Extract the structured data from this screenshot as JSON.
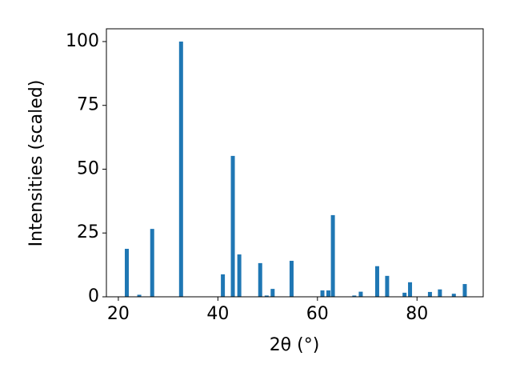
{
  "chart_data": {
    "type": "bar",
    "xlabel": "2θ (°)",
    "ylabel": "Intensities (scaled)",
    "x": [
      21.7,
      24.2,
      26.8,
      32.6,
      41.0,
      43.0,
      44.3,
      48.5,
      49.8,
      51.0,
      54.8,
      61.0,
      62.2,
      63.1,
      67.4,
      68.7,
      72.0,
      74.0,
      77.5,
      78.6,
      82.6,
      84.6,
      87.4,
      89.6
    ],
    "values": [
      18.8,
      0.8,
      26.6,
      100,
      8.8,
      55.2,
      16.6,
      13.2,
      0.5,
      3.1,
      14.1,
      2.5,
      2.5,
      32,
      0.5,
      2,
      12,
      8.2,
      1.6,
      5.7,
      1.9,
      2.9,
      1.2,
      5.0
    ],
    "color": "#1f77b4",
    "xlim": [
      17.6,
      93.3
    ],
    "xticks": [
      20,
      40,
      60,
      80
    ],
    "ylim": [
      0,
      105
    ],
    "yticks": [
      0,
      25,
      50,
      75,
      100
    ],
    "grid": false
  }
}
